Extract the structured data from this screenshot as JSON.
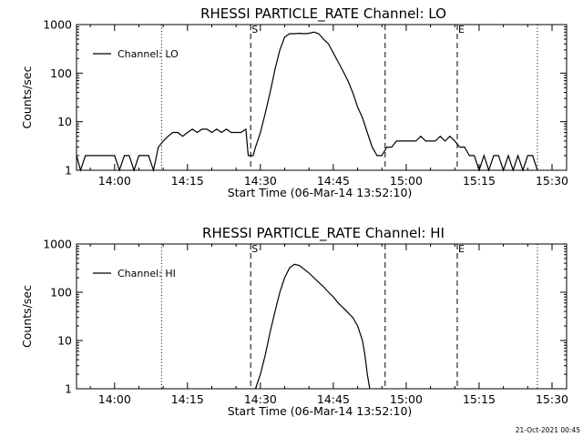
{
  "timestamp": "21-Oct-2021 00:45",
  "chart_data": [
    {
      "type": "line",
      "title": "RHESSI PARTICLE_RATE Channel: LO",
      "xlabel": "Start Time (06-Mar-14 13:52:10)",
      "ylabel": "Counts/sec",
      "y_scale": "log",
      "ylim": [
        1,
        1000
      ],
      "xlim": [
        "13:52:10",
        "15:33:00"
      ],
      "x_ticks": [
        "14:00",
        "14:15",
        "14:30",
        "14:45",
        "15:00",
        "15:15",
        "15:30"
      ],
      "y_ticks": [
        "1",
        "10",
        "100",
        "1000"
      ],
      "grid": false,
      "legend_position": "top-left",
      "marker_labels": [
        "S",
        "E"
      ],
      "markers_x": [
        "14:28:00",
        "14:55:40",
        "15:10:30"
      ],
      "dotted_x": [
        "14:09:40",
        "15:27:00"
      ],
      "series": [
        {
          "name": "Channel: LO",
          "color": "#000000",
          "x": [
            "13:52:10",
            "13:53:00",
            "13:54:00",
            "13:55:00",
            "13:56:00",
            "13:58:00",
            "13:59:00",
            "14:00:00",
            "14:01:00",
            "14:02:00",
            "14:03:00",
            "14:04:00",
            "14:05:00",
            "14:06:00",
            "14:07:00",
            "14:08:00",
            "14:09:00",
            "14:10:00",
            "14:11:00",
            "14:12:00",
            "14:13:00",
            "14:14:00",
            "14:15:00",
            "14:16:00",
            "14:17:00",
            "14:18:00",
            "14:19:00",
            "14:20:00",
            "14:21:00",
            "14:22:00",
            "14:23:00",
            "14:24:00",
            "14:25:00",
            "14:26:00",
            "14:27:00",
            "14:27:30",
            "14:28:00",
            "14:28:30",
            "14:29:00",
            "14:30:00",
            "14:31:00",
            "14:32:00",
            "14:33:00",
            "14:34:00",
            "14:35:00",
            "14:36:00",
            "14:37:00",
            "14:38:00",
            "14:39:00",
            "14:40:00",
            "14:41:00",
            "14:42:00",
            "14:43:00",
            "14:44:00",
            "14:45:00",
            "14:46:00",
            "14:47:00",
            "14:48:00",
            "14:49:00",
            "14:50:00",
            "14:51:00",
            "14:52:00",
            "14:53:00",
            "14:54:00",
            "14:55:00",
            "14:56:00",
            "14:57:00",
            "14:58:00",
            "14:59:00",
            "15:00:00",
            "15:01:00",
            "15:02:00",
            "15:03:00",
            "15:04:00",
            "15:05:00",
            "15:06:00",
            "15:07:00",
            "15:08:00",
            "15:09:00",
            "15:10:00",
            "15:11:00",
            "15:12:00",
            "15:13:00",
            "15:14:00",
            "15:15:00",
            "15:16:00",
            "15:17:00",
            "15:18:00",
            "15:19:00",
            "15:20:00",
            "15:21:00",
            "15:22:00",
            "15:23:00",
            "15:24:00",
            "15:25:00",
            "15:26:00",
            "15:27:00"
          ],
          "y": [
            2,
            1,
            2,
            2,
            2,
            2,
            2,
            2,
            1,
            2,
            2,
            1,
            2,
            2,
            2,
            1,
            3,
            4,
            5,
            6,
            6,
            5,
            6,
            7,
            6,
            7,
            7,
            6,
            7,
            6,
            7,
            6,
            6,
            6,
            7,
            2,
            2,
            2,
            3,
            6,
            15,
            40,
            120,
            300,
            550,
            650,
            650,
            660,
            650,
            660,
            700,
            650,
            500,
            400,
            260,
            170,
            110,
            70,
            40,
            20,
            12,
            6,
            3,
            2,
            2,
            3,
            3,
            4,
            4,
            4,
            4,
            4,
            5,
            4,
            4,
            4,
            5,
            4,
            5,
            4,
            3,
            3,
            2,
            2,
            1,
            2,
            1,
            2,
            2,
            1,
            2,
            1,
            2,
            1,
            2,
            2,
            1
          ]
        }
      ]
    },
    {
      "type": "line",
      "title": "RHESSI PARTICLE_RATE Channel: HI",
      "xlabel": "Start Time (06-Mar-14 13:52:10)",
      "ylabel": "Counts/sec",
      "y_scale": "log",
      "ylim": [
        1,
        1000
      ],
      "xlim": [
        "13:52:10",
        "15:33:00"
      ],
      "x_ticks": [
        "14:00",
        "14:15",
        "14:30",
        "14:45",
        "15:00",
        "15:15",
        "15:30"
      ],
      "y_ticks": [
        "1",
        "10",
        "100",
        "1000"
      ],
      "grid": false,
      "legend_position": "top-left",
      "marker_labels": [
        "S",
        "E"
      ],
      "markers_x": [
        "14:28:00",
        "14:55:40",
        "15:10:30"
      ],
      "dotted_x": [
        "14:09:40",
        "15:27:00"
      ],
      "series": [
        {
          "name": "Channel: HI",
          "color": "#000000",
          "x": [
            "14:29:00",
            "14:30:00",
            "14:31:00",
            "14:32:00",
            "14:33:00",
            "14:34:00",
            "14:35:00",
            "14:36:00",
            "14:37:00",
            "14:38:00",
            "14:39:00",
            "14:40:00",
            "14:41:00",
            "14:42:00",
            "14:43:00",
            "14:44:00",
            "14:45:00",
            "14:46:00",
            "14:47:00",
            "14:48:00",
            "14:49:00",
            "14:50:00",
            "14:51:00",
            "14:51:30",
            "14:52:00",
            "14:52:30"
          ],
          "y": [
            1,
            2,
            5,
            15,
            40,
            100,
            200,
            320,
            380,
            360,
            300,
            250,
            200,
            160,
            130,
            100,
            80,
            60,
            48,
            38,
            30,
            20,
            10,
            5,
            2,
            1
          ]
        }
      ]
    }
  ]
}
